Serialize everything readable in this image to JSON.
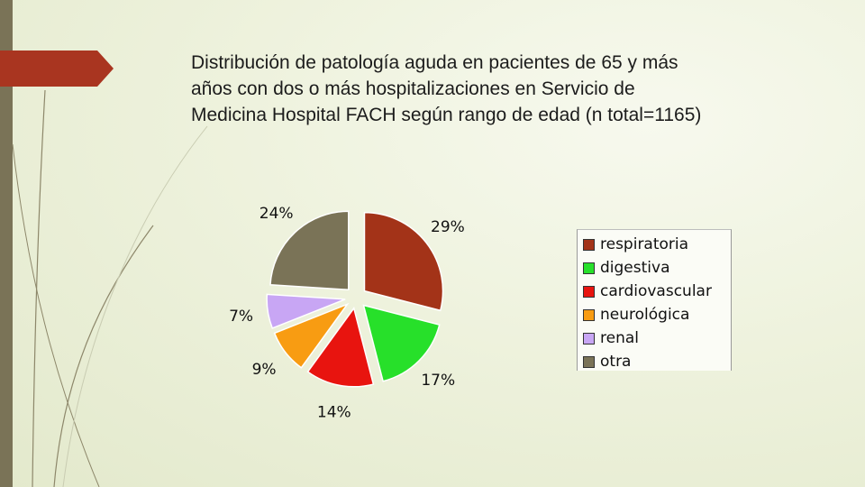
{
  "slide": {
    "title": "Distribución de patología aguda en pacientes de 65 y más\naños con dos o más hospitalizaciones en  Servicio de\nMedicina Hospital FACH según rango de edad (n total=1165)",
    "accent_color": "#a93520",
    "bar_color": "#7a7357"
  },
  "chart_data": {
    "type": "pie",
    "title": "",
    "exploded": true,
    "legend_position": "right",
    "slices": [
      {
        "label": "respiratoria",
        "value": 29,
        "label_text": "29%",
        "color": "#a33318"
      },
      {
        "label": "digestiva",
        "value": 17,
        "label_text": "17%",
        "color": "#27e02a"
      },
      {
        "label": "cardiovascular",
        "value": 14,
        "label_text": "14%",
        "color": "#e8140f"
      },
      {
        "label": "neurológica",
        "value": 9,
        "label_text": "9%",
        "color": "#f89c12"
      },
      {
        "label": "renal",
        "value": 7,
        "label_text": "7%",
        "color": "#c8a6f4"
      },
      {
        "label": "otra",
        "value": 24,
        "label_text": "24%",
        "color": "#7a7357"
      }
    ]
  }
}
